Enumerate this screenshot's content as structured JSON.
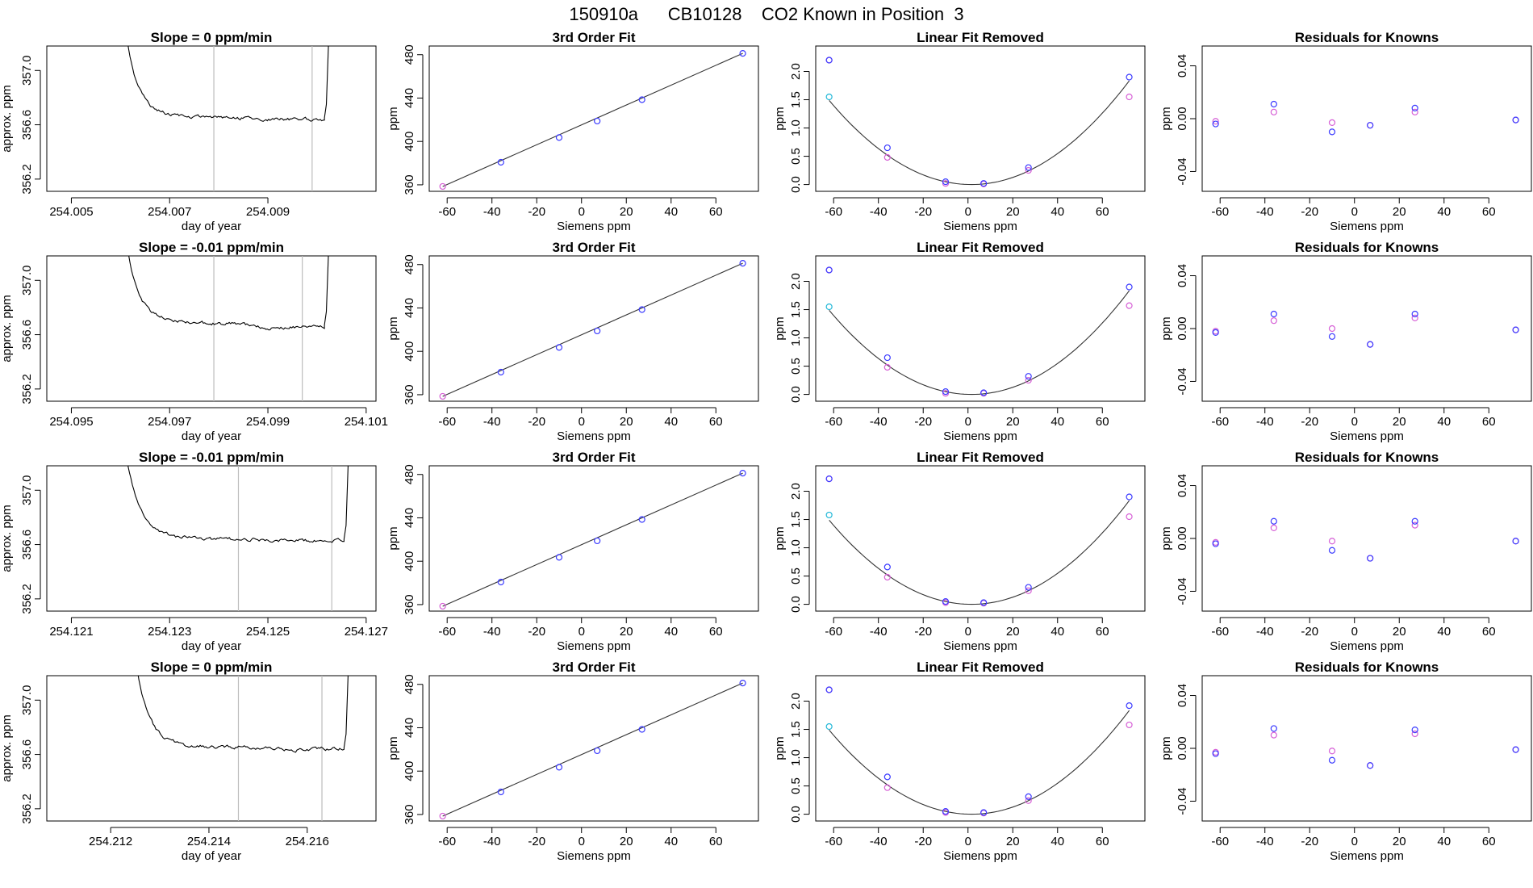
{
  "chart_data": {
    "title": "150910a      CB10128    CO2 Known in Position  3",
    "colors": {
      "trace": "#000000",
      "guide_lines": "#bdbdbd",
      "fit_curve": "#333333",
      "blue_points": "#3b3bff",
      "magenta_points": "#d65fd6",
      "cyan_points": "#22b8d8"
    },
    "rows": [
      {
        "slope": {
          "type": "line",
          "title": "Slope =  0  ppm/min",
          "xlabel": "day of year",
          "ylabel": "approx. ppm",
          "xlim": [
            254.0045,
            254.0112
          ],
          "ylim": [
            356.11,
            357.18
          ],
          "xticks": [
            "254.005",
            "254.007",
            "254.009"
          ],
          "yticks": [
            "356.2",
            "356.6",
            "357.0"
          ],
          "vlines": [
            254.0079,
            254.0099
          ],
          "trace": {
            "x0": 254.006,
            "x1": 254.01015,
            "base": 356.665,
            "end": 356.64,
            "drop": 356.63,
            "rise": 356.65,
            "seed": 1
          }
        },
        "fit3": {
          "type": "scatter",
          "title": "3rd Order Fit",
          "xlabel": "Siemens ppm",
          "ylabel": "ppm",
          "xlim": [
            -68,
            79
          ],
          "ylim": [
            354,
            488
          ],
          "xticks": [
            "-60",
            "-40",
            "-20",
            "0",
            "20",
            "40",
            "60"
          ],
          "yticks": [
            "360",
            "400",
            "440",
            "480"
          ],
          "points_x": [
            -62,
            -36,
            -10,
            7,
            27,
            72
          ],
          "points_y": [
            358.5,
            380.8,
            403.6,
            418.8,
            438.5,
            481.2
          ]
        },
        "linear_removed": {
          "type": "scatter",
          "title": "Linear Fit Removed",
          "xlabel": "Siemens ppm",
          "ylabel": "ppm",
          "xlim": [
            -68,
            79
          ],
          "ylim": [
            -0.12,
            2.45
          ],
          "xticks": [
            "-60",
            "-40",
            "-20",
            "0",
            "20",
            "40",
            "60"
          ],
          "yticks": [
            "0.0",
            "0.5",
            "1.0",
            "1.5",
            "2.0"
          ],
          "points_x": [
            -62,
            -36,
            -10,
            7,
            27,
            72
          ],
          "blue_y": [
            2.2,
            0.65,
            0.05,
            0.02,
            0.3,
            1.9
          ],
          "magenta_y": [
            2.2,
            0.48,
            0.02,
            0.01,
            0.25,
            1.55
          ],
          "cyan": {
            "x": -62,
            "y": 1.55
          },
          "curve_coefficient": 0.000369
        },
        "residuals": {
          "type": "scatter",
          "title": "Residuals for Knowns",
          "xlabel": "Siemens ppm",
          "ylabel": "ppm",
          "xlim": [
            -68,
            79
          ],
          "ylim": [
            -0.055,
            0.055
          ],
          "xticks": [
            "-60",
            "-40",
            "-20",
            "0",
            "20",
            "40",
            "60"
          ],
          "yticks": [
            "-0.04",
            "0.00",
            "0.04"
          ],
          "points_x": [
            -62,
            -36,
            -10,
            7,
            27,
            72
          ],
          "blue_y": [
            -0.004,
            0.011,
            -0.01,
            -0.005,
            0.008,
            -0.001
          ],
          "magenta_y": [
            -0.002,
            0.005,
            -0.003,
            -0.005,
            0.005,
            -0.001
          ]
        }
      },
      {
        "slope": {
          "type": "line",
          "title": "Slope =  -0.01  ppm/min",
          "xlabel": "day of year",
          "ylabel": "approx. ppm",
          "xlim": [
            254.0945,
            254.1012
          ],
          "ylim": [
            356.11,
            357.18
          ],
          "xticks": [
            "254.095",
            "254.097",
            "254.099",
            "254.101"
          ],
          "yticks": [
            "356.2",
            "356.6",
            "357.0"
          ],
          "vlines": [
            254.0979,
            254.0997
          ],
          "trace": {
            "x0": 254.096,
            "x1": 254.10015,
            "base": 356.7,
            "end": 356.66,
            "drop": 356.62,
            "rise": 356.67,
            "seed": 2
          }
        },
        "fit3": {
          "type": "scatter",
          "title": "3rd Order Fit",
          "xlabel": "Siemens ppm",
          "ylabel": "ppm",
          "xlim": [
            -68,
            79
          ],
          "ylim": [
            354,
            488
          ],
          "xticks": [
            "-60",
            "-40",
            "-20",
            "0",
            "20",
            "40",
            "60"
          ],
          "yticks": [
            "360",
            "400",
            "440",
            "480"
          ],
          "points_x": [
            -62,
            -36,
            -10,
            7,
            27,
            72
          ],
          "points_y": [
            358.5,
            380.8,
            403.6,
            418.8,
            438.5,
            481.2
          ]
        },
        "linear_removed": {
          "type": "scatter",
          "title": "Linear Fit Removed",
          "xlabel": "Siemens ppm",
          "ylabel": "ppm",
          "xlim": [
            -68,
            79
          ],
          "ylim": [
            -0.12,
            2.45
          ],
          "xticks": [
            "-60",
            "-40",
            "-20",
            "0",
            "20",
            "40",
            "60"
          ],
          "yticks": [
            "0.0",
            "0.5",
            "1.0",
            "1.5",
            "2.0"
          ],
          "points_x": [
            -62,
            -36,
            -10,
            7,
            27,
            72
          ],
          "blue_y": [
            2.2,
            0.65,
            0.05,
            0.03,
            0.32,
            1.9
          ],
          "magenta_y": [
            2.2,
            0.48,
            0.02,
            0.02,
            0.25,
            1.57
          ],
          "cyan": {
            "x": -62,
            "y": 1.55
          },
          "curve_coefficient": 0.000369
        },
        "residuals": {
          "type": "scatter",
          "title": "Residuals for Knowns",
          "xlabel": "Siemens ppm",
          "ylabel": "ppm",
          "xlim": [
            -68,
            79
          ],
          "ylim": [
            -0.055,
            0.055
          ],
          "xticks": [
            "-60",
            "-40",
            "-20",
            "0",
            "20",
            "40",
            "60"
          ],
          "yticks": [
            "-0.04",
            "0.00",
            "0.04"
          ],
          "points_x": [
            -62,
            -36,
            -10,
            7,
            27,
            72
          ],
          "blue_y": [
            -0.003,
            0.011,
            -0.006,
            -0.012,
            0.011,
            -0.001
          ],
          "magenta_y": [
            -0.002,
            0.006,
            0.0,
            -0.012,
            0.008,
            -0.001
          ]
        }
      },
      {
        "slope": {
          "type": "line",
          "title": "Slope =  -0.01  ppm/min",
          "xlabel": "day of year",
          "ylabel": "approx. ppm",
          "xlim": [
            254.1205,
            254.1272
          ],
          "ylim": [
            356.11,
            357.18
          ],
          "xticks": [
            "254.121",
            "254.123",
            "254.125",
            "254.127"
          ],
          "yticks": [
            "356.2",
            "356.6",
            "357.0"
          ],
          "vlines": [
            254.1244,
            254.1263
          ],
          "trace": {
            "x0": 254.122,
            "x1": 254.12655,
            "base": 356.65,
            "end": 356.63,
            "drop": 356.62,
            "rise": 356.64,
            "seed": 3
          }
        },
        "fit3": {
          "type": "scatter",
          "title": "3rd Order Fit",
          "xlabel": "Siemens ppm",
          "ylabel": "ppm",
          "xlim": [
            -68,
            79
          ],
          "ylim": [
            354,
            488
          ],
          "xticks": [
            "-60",
            "-40",
            "-20",
            "0",
            "20",
            "40",
            "60"
          ],
          "yticks": [
            "360",
            "400",
            "440",
            "480"
          ],
          "points_x": [
            -62,
            -36,
            -10,
            7,
            27,
            72
          ],
          "points_y": [
            358.5,
            380.8,
            403.6,
            418.8,
            438.5,
            481.2
          ]
        },
        "linear_removed": {
          "type": "scatter",
          "title": "Linear Fit Removed",
          "xlabel": "Siemens ppm",
          "ylabel": "ppm",
          "xlim": [
            -68,
            79
          ],
          "ylim": [
            -0.12,
            2.45
          ],
          "xticks": [
            "-60",
            "-40",
            "-20",
            "0",
            "20",
            "40",
            "60"
          ],
          "yticks": [
            "0.0",
            "0.5",
            "1.0",
            "1.5",
            "2.0"
          ],
          "points_x": [
            -62,
            -36,
            -10,
            7,
            27,
            72
          ],
          "blue_y": [
            2.22,
            0.66,
            0.05,
            0.03,
            0.3,
            1.9
          ],
          "magenta_y": [
            2.22,
            0.48,
            0.03,
            0.02,
            0.24,
            1.55
          ],
          "cyan": {
            "x": -62,
            "y": 1.58
          },
          "curve_coefficient": 0.000369
        },
        "residuals": {
          "type": "scatter",
          "title": "Residuals for Knowns",
          "xlabel": "Siemens ppm",
          "ylabel": "ppm",
          "xlim": [
            -68,
            79
          ],
          "ylim": [
            -0.055,
            0.055
          ],
          "xticks": [
            "-60",
            "-40",
            "-20",
            "0",
            "20",
            "40",
            "60"
          ],
          "yticks": [
            "-0.04",
            "0.00",
            "0.04"
          ],
          "points_x": [
            -62,
            -36,
            -10,
            7,
            27,
            72
          ],
          "blue_y": [
            -0.004,
            0.013,
            -0.009,
            -0.015,
            0.013,
            -0.002
          ],
          "magenta_y": [
            -0.003,
            0.008,
            -0.002,
            -0.015,
            0.01,
            -0.002
          ]
        }
      },
      {
        "slope": {
          "type": "line",
          "title": "Slope =  0  ppm/min",
          "xlabel": "day of year",
          "ylabel": "approx. ppm",
          "xlim": [
            254.2107,
            254.2174
          ],
          "ylim": [
            356.11,
            357.18
          ],
          "xticks": [
            "254.212",
            "254.214",
            "254.216"
          ],
          "yticks": [
            "356.2",
            "356.6",
            "357.0"
          ],
          "vlines": [
            254.2146,
            254.2163
          ],
          "trace": {
            "x0": 254.2124,
            "x1": 254.21675,
            "base": 356.665,
            "end": 356.64,
            "drop": 356.62,
            "rise": 356.65,
            "seed": 4
          }
        },
        "fit3": {
          "type": "scatter",
          "title": "3rd Order Fit",
          "xlabel": "Siemens ppm",
          "ylabel": "ppm",
          "xlim": [
            -68,
            79
          ],
          "ylim": [
            354,
            488
          ],
          "xticks": [
            "-60",
            "-40",
            "-20",
            "0",
            "20",
            "40",
            "60"
          ],
          "yticks": [
            "360",
            "400",
            "440",
            "480"
          ],
          "points_x": [
            -62,
            -36,
            -10,
            7,
            27,
            72
          ],
          "points_y": [
            358.5,
            380.8,
            403.6,
            418.8,
            438.5,
            481.2
          ]
        },
        "linear_removed": {
          "type": "scatter",
          "title": "Linear Fit Removed",
          "xlabel": "Siemens ppm",
          "ylabel": "ppm",
          "xlim": [
            -68,
            79
          ],
          "ylim": [
            -0.12,
            2.45
          ],
          "xticks": [
            "-60",
            "-40",
            "-20",
            "0",
            "20",
            "40",
            "60"
          ],
          "yticks": [
            "0.0",
            "0.5",
            "1.0",
            "1.5",
            "2.0"
          ],
          "points_x": [
            -62,
            -36,
            -10,
            7,
            27,
            72
          ],
          "blue_y": [
            2.2,
            0.66,
            0.05,
            0.03,
            0.31,
            1.92
          ],
          "magenta_y": [
            2.2,
            0.47,
            0.03,
            0.02,
            0.24,
            1.58
          ],
          "cyan": {
            "x": -62,
            "y": 1.55
          },
          "curve_coefficient": 0.000369
        },
        "residuals": {
          "type": "scatter",
          "title": "Residuals for Knowns",
          "xlabel": "Siemens ppm",
          "ylabel": "ppm",
          "xlim": [
            -68,
            79
          ],
          "ylim": [
            -0.055,
            0.055
          ],
          "xticks": [
            "-60",
            "-40",
            "-20",
            "0",
            "20",
            "40",
            "60"
          ],
          "yticks": [
            "-0.04",
            "0.00",
            "0.04"
          ],
          "points_x": [
            -62,
            -36,
            -10,
            7,
            27,
            72
          ],
          "blue_y": [
            -0.004,
            0.015,
            -0.009,
            -0.013,
            0.014,
            -0.001
          ],
          "magenta_y": [
            -0.003,
            0.01,
            -0.002,
            -0.013,
            0.011,
            -0.001
          ]
        }
      }
    ]
  }
}
